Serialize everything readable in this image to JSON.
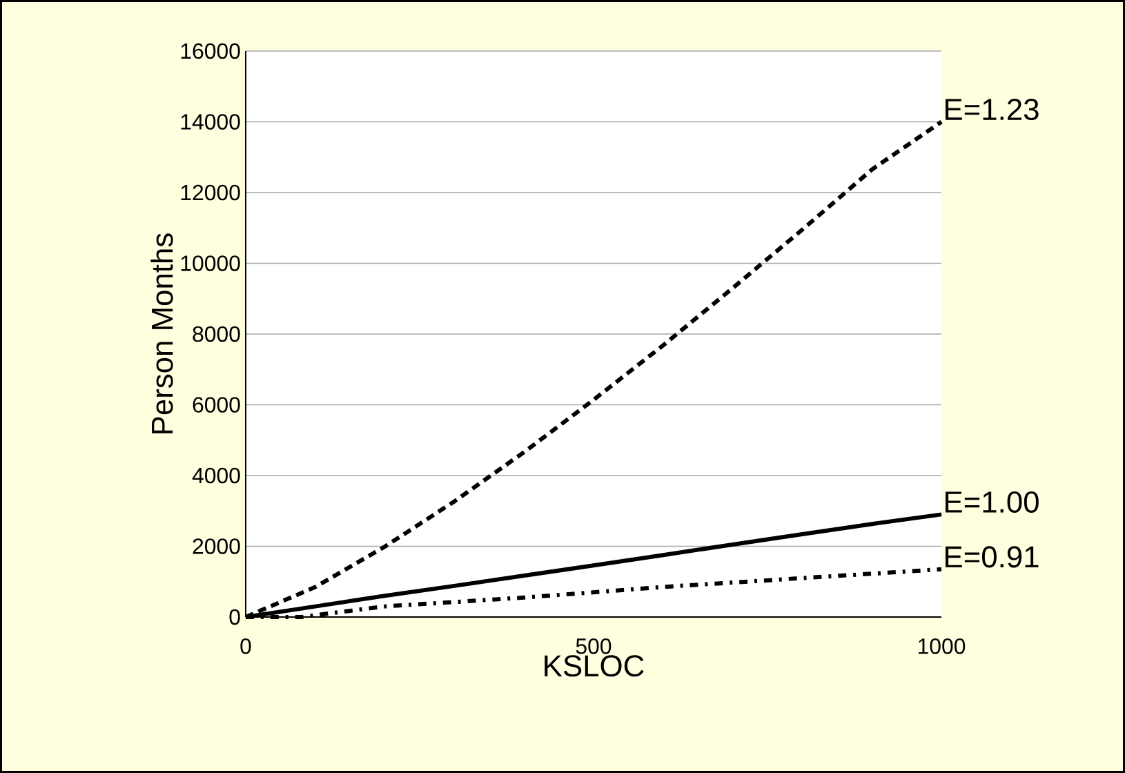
{
  "chart_data": {
    "type": "line",
    "xlabel": "KSLOC",
    "ylabel": "Person Months",
    "xlim": [
      0,
      1000
    ],
    "ylim": [
      0,
      16000
    ],
    "xticks": [
      0,
      500,
      1000
    ],
    "yticks": [
      0,
      2000,
      4000,
      6000,
      8000,
      10000,
      12000,
      14000,
      16000
    ],
    "grid": "y",
    "legend": false,
    "marker": "none",
    "series": [
      {
        "name": "E=1.23",
        "color": "#000000",
        "line_style": "dashed",
        "x": [
          0,
          100,
          200,
          300,
          400,
          500,
          600,
          700,
          800,
          900,
          1000
        ],
        "values": [
          0,
          850,
          1990,
          3270,
          4660,
          6140,
          7680,
          9300,
          10950,
          12650,
          14000
        ]
      },
      {
        "name": "E=1.00",
        "color": "#000000",
        "line_style": "solid",
        "x": [
          0,
          100,
          200,
          300,
          400,
          500,
          600,
          700,
          800,
          900,
          1000
        ],
        "values": [
          0,
          300,
          600,
          880,
          1170,
          1460,
          1750,
          2050,
          2340,
          2630,
          2900
        ]
      },
      {
        "name": "E=0.91",
        "color": "#000000",
        "line_style": "dotted",
        "x": [
          0,
          80,
          200,
          400,
          600,
          800,
          1000
        ],
        "values": [
          0,
          0,
          300,
          550,
          850,
          1100,
          1350
        ]
      }
    ]
  }
}
